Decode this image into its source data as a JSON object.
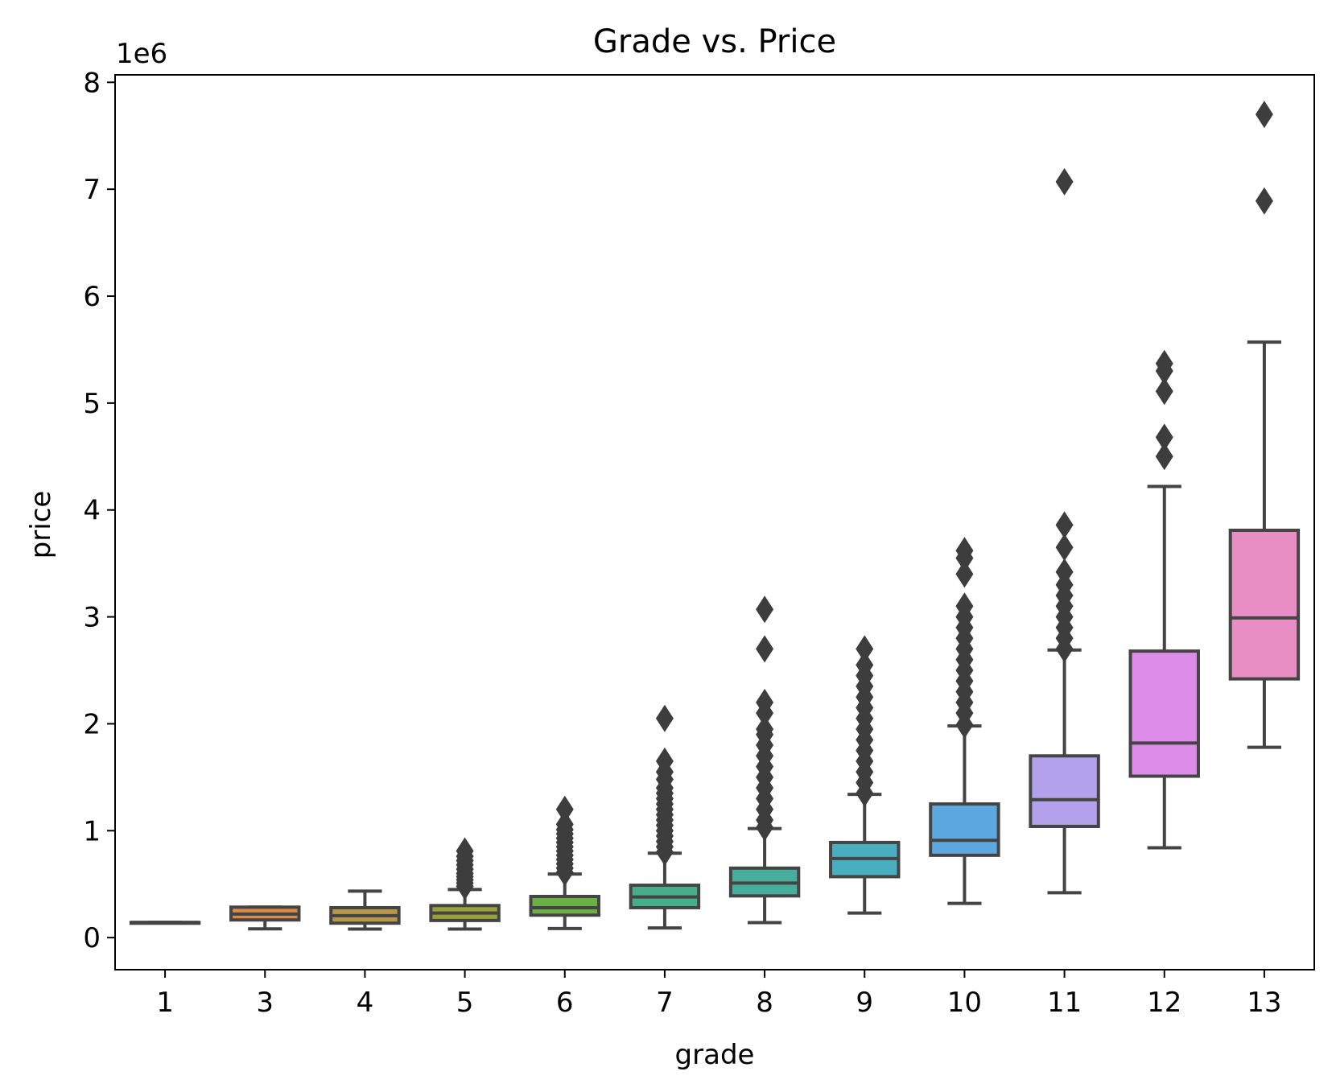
{
  "chart_data": {
    "type": "box",
    "title": "Grade vs. Price",
    "xlabel": "grade",
    "ylabel": "price",
    "y_offset_label": "1e6",
    "y_scale": 1000000,
    "ylim": [
      -300000,
      8070000
    ],
    "y_ticks": [
      0,
      1000000,
      2000000,
      3000000,
      4000000,
      5000000,
      6000000,
      7000000,
      8000000
    ],
    "y_tick_labels": [
      "0",
      "1",
      "2",
      "3",
      "4",
      "5",
      "6",
      "7",
      "8"
    ],
    "grid": false,
    "categories": [
      "1",
      "3",
      "4",
      "5",
      "6",
      "7",
      "8",
      "9",
      "10",
      "11",
      "12",
      "13"
    ],
    "colors": [
      "#e8836b",
      "#d98b4a",
      "#b8974a",
      "#9aa13c",
      "#6bb043",
      "#46ae8a",
      "#47ad9c",
      "#49aec0",
      "#5ea8e0",
      "#b3a2eb",
      "#de8ce9",
      "#e88ec4"
    ],
    "boxes": [
      {
        "min": 142000,
        "q1": 142000,
        "median": 142000,
        "q3": 142000,
        "max": 142000,
        "outliers": []
      },
      {
        "min": 82000,
        "q1": 165000,
        "median": 220000,
        "q3": 285000,
        "max": 285000,
        "outliers": []
      },
      {
        "min": 80000,
        "q1": 135000,
        "median": 205000,
        "q3": 280000,
        "max": 435000,
        "outliers": []
      },
      {
        "min": 80000,
        "q1": 160000,
        "median": 230000,
        "q3": 300000,
        "max": 450000,
        "outliers": [
          480000,
          510000,
          540000,
          570000,
          600000,
          640000,
          680000,
          720000,
          760000,
          810000
        ]
      },
      {
        "min": 85000,
        "q1": 210000,
        "median": 280000,
        "q3": 385000,
        "max": 595000,
        "outliers": [
          610000,
          650000,
          690000,
          730000,
          770000,
          810000,
          850000,
          890000,
          930000,
          970000,
          1010000,
          1060000,
          1200000
        ]
      },
      {
        "min": 90000,
        "q1": 280000,
        "median": 380000,
        "q3": 490000,
        "max": 790000,
        "outliers": [
          800000,
          850000,
          900000,
          950000,
          1000000,
          1050000,
          1100000,
          1150000,
          1200000,
          1250000,
          1300000,
          1350000,
          1400000,
          1480000,
          1550000,
          1650000,
          2050000
        ]
      },
      {
        "min": 140000,
        "q1": 390000,
        "median": 510000,
        "q3": 650000,
        "max": 1020000,
        "outliers": [
          1030000,
          1100000,
          1200000,
          1300000,
          1400000,
          1500000,
          1600000,
          1700000,
          1800000,
          1900000,
          1950000,
          2100000,
          2200000,
          2700000,
          3070000
        ]
      },
      {
        "min": 230000,
        "q1": 570000,
        "median": 740000,
        "q3": 890000,
        "max": 1340000,
        "outliers": [
          1350000,
          1450000,
          1550000,
          1650000,
          1750000,
          1850000,
          1950000,
          2050000,
          2150000,
          2250000,
          2350000,
          2450000,
          2550000,
          2700000
        ]
      },
      {
        "min": 320000,
        "q1": 770000,
        "median": 910000,
        "q3": 1250000,
        "max": 1980000,
        "outliers": [
          1990000,
          2100000,
          2200000,
          2300000,
          2400000,
          2500000,
          2600000,
          2700000,
          2800000,
          2900000,
          3000000,
          3100000,
          3400000,
          3550000,
          3620000
        ]
      },
      {
        "min": 420000,
        "q1": 1040000,
        "median": 1290000,
        "q3": 1700000,
        "max": 2690000,
        "outliers": [
          2700000,
          2800000,
          2900000,
          3000000,
          3100000,
          3200000,
          3300000,
          3420000,
          3650000,
          3860000,
          7070000
        ]
      },
      {
        "min": 840000,
        "q1": 1510000,
        "median": 1820000,
        "q3": 2680000,
        "max": 4220000,
        "outliers": [
          4500000,
          4680000,
          5110000,
          5300000,
          5370000
        ]
      },
      {
        "min": 1780000,
        "q1": 2420000,
        "median": 2990000,
        "q3": 3810000,
        "max": 5570000,
        "outliers": [
          6890000,
          7700000
        ]
      }
    ]
  }
}
